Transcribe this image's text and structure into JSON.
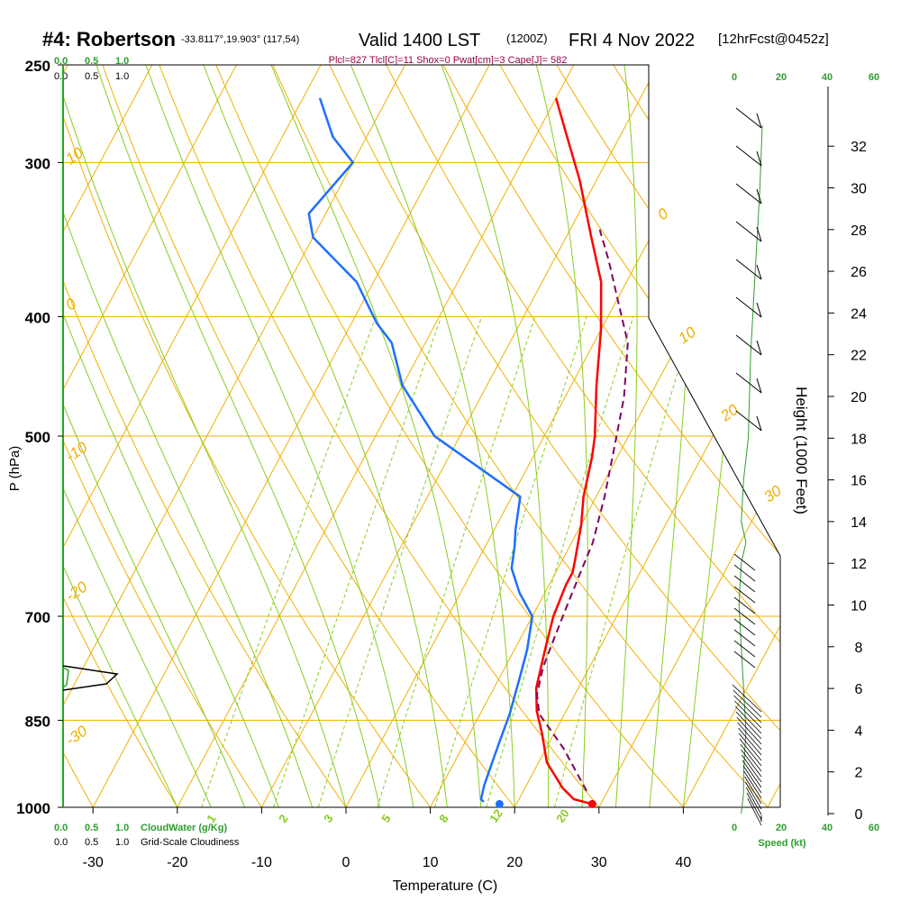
{
  "header": {
    "station": "#4: Robertson",
    "coords": "-33.8117°,19.903° (117,54)",
    "valid": "Valid 1400 LST",
    "utc": "(1200Z)",
    "date": "FRI 4 Nov 2022",
    "forecast": "[12hrFcst@0452z]",
    "indices": "Plcl=827 Tlcl[C]=11 Shox=0 Pwat[cm]=3 Cape[J]= 582"
  },
  "left_scale": {
    "green_labels": [
      "0.0",
      "0.5",
      "1.0"
    ],
    "black_labels": [
      "0.0",
      "0.5",
      "1.0"
    ],
    "bottom_green_caption": "CloudWater (g/Kg)",
    "bottom_black_caption": "Grid-Scale Cloudiness"
  },
  "wind_speed_axis": {
    "top_labels": [
      "0",
      "20",
      "40",
      "60"
    ],
    "bottom_labels": [
      "0",
      "20",
      "40",
      "60"
    ],
    "caption": "Speed (kt)"
  },
  "colors": {
    "isobar": "#f0b000",
    "dry_adiabat": "#f0b000",
    "moist_adiabat": "#88cc22",
    "mixing_ratio": "#88cc22",
    "temperature": "#ff0000",
    "dewpoint": "#1e6fff",
    "parcel": "#800060",
    "green_text": "#2e9e2e",
    "indices_text": "#990044"
  },
  "chart_data": {
    "type": "line",
    "title": "#4: Robertson",
    "xlabel": "Temperature (C)",
    "ylabel": "P (hPa)",
    "right_label": "Height (1000 Feet)",
    "x_ticks": [
      -30,
      -20,
      -10,
      0,
      10,
      20,
      30,
      40
    ],
    "p_ticks": [
      250,
      300,
      400,
      500,
      700,
      850,
      1000
    ],
    "height_ticks": [
      0,
      2,
      4,
      6,
      8,
      10,
      12,
      14,
      16,
      18,
      20,
      22,
      24,
      26,
      28,
      30,
      32
    ],
    "dry_adiabat_labels": [
      "0",
      "10",
      "20",
      "30",
      "-10",
      "-20",
      "10",
      "0",
      "-10",
      "-20",
      "-30"
    ],
    "mixing_ratio_labels": [
      "1",
      "2",
      "3",
      "5",
      "8",
      "12",
      "20"
    ],
    "series": [
      {
        "name": "temperature",
        "points": [
          [
            29.0,
            994
          ],
          [
            26.5,
            985
          ],
          [
            24.5,
            965
          ],
          [
            21.0,
            920
          ],
          [
            18.5,
            870
          ],
          [
            16.5,
            835
          ],
          [
            15.0,
            800
          ],
          [
            13.5,
            740
          ],
          [
            12.5,
            700
          ],
          [
            12.0,
            660
          ],
          [
            12.0,
            645
          ],
          [
            11.5,
            630
          ],
          [
            10.0,
            590
          ],
          [
            8.5,
            560
          ],
          [
            7.0,
            520
          ],
          [
            6.0,
            500
          ],
          [
            3.0,
            455
          ],
          [
            0.0,
            410
          ],
          [
            -3.0,
            375
          ],
          [
            -7.0,
            345
          ],
          [
            -12.0,
            310
          ],
          [
            -15.5,
            290
          ],
          [
            -20.0,
            266
          ]
        ]
      },
      {
        "name": "dewpoint",
        "points": [
          [
            16.0,
            990
          ],
          [
            15.5,
            985
          ],
          [
            15.0,
            960
          ],
          [
            14.5,
            920
          ],
          [
            14.0,
            880
          ],
          [
            13.5,
            840
          ],
          [
            12.5,
            790
          ],
          [
            11.5,
            745
          ],
          [
            10.0,
            700
          ],
          [
            7.0,
            670
          ],
          [
            4.5,
            640
          ],
          [
            3.5,
            615
          ],
          [
            2.5,
            595
          ],
          [
            1.0,
            560
          ],
          [
            -3.5,
            540
          ],
          [
            -13.0,
            500
          ],
          [
            -20.0,
            455
          ],
          [
            -24.0,
            420
          ],
          [
            -27.0,
            405
          ],
          [
            -32.0,
            375
          ],
          [
            -40.0,
            345
          ],
          [
            -42.0,
            330
          ],
          [
            -40.0,
            300
          ],
          [
            -44.0,
            286
          ],
          [
            -48.0,
            266
          ]
        ]
      },
      {
        "name": "parcel",
        "points": [
          [
            27.5,
            970
          ],
          [
            22.0,
            895
          ],
          [
            17.0,
            840
          ],
          [
            15.5,
            810
          ],
          [
            14.5,
            770
          ],
          [
            14.0,
            730
          ],
          [
            13.5,
            690
          ],
          [
            13.0,
            650
          ],
          [
            12.5,
            610
          ],
          [
            11.0,
            560
          ],
          [
            9.0,
            510
          ],
          [
            7.0,
            465
          ],
          [
            4.0,
            420
          ],
          [
            1.0,
            395
          ],
          [
            -3.5,
            360
          ],
          [
            -6.5,
            340
          ]
        ]
      }
    ],
    "surface_temperature_dot": [
      29.0,
      994
    ],
    "surface_dewpoint_dot": [
      18.0,
      994
    ],
    "wind_speed_profile": [
      [
        3,
        0
      ],
      [
        4,
        1
      ],
      [
        4,
        2
      ],
      [
        5,
        4
      ],
      [
        4,
        6
      ],
      [
        3,
        8
      ],
      [
        2,
        10
      ],
      [
        3,
        12
      ],
      [
        5,
        13
      ],
      [
        3,
        14
      ],
      [
        4,
        16
      ],
      [
        6,
        18
      ],
      [
        7,
        22
      ],
      [
        9,
        26
      ],
      [
        11,
        30
      ],
      [
        12,
        33
      ]
    ]
  }
}
